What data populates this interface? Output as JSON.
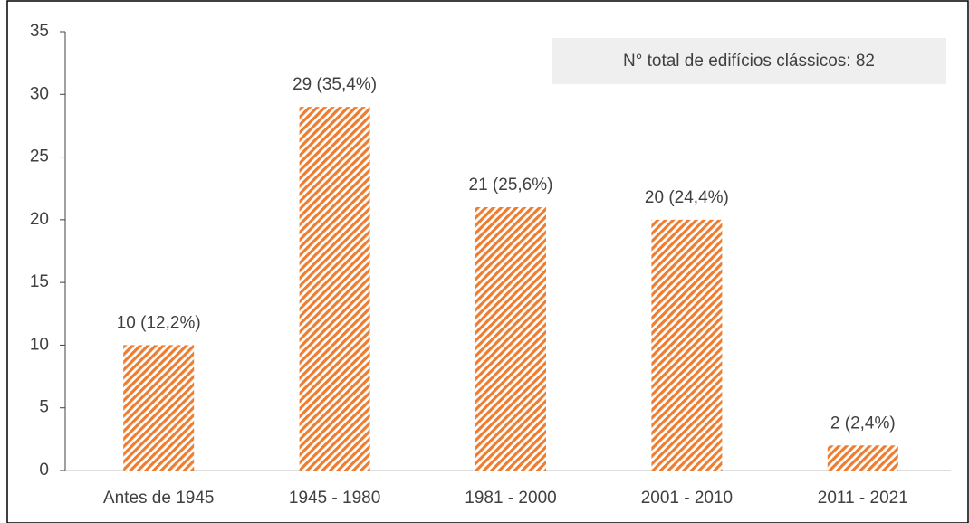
{
  "chart_data": {
    "type": "bar",
    "categories": [
      "Antes de 1945",
      "1945 - 1980",
      "1981 - 2000",
      "2001 - 2010",
      "2011 - 2021"
    ],
    "values": [
      10,
      29,
      21,
      20,
      2
    ],
    "value_labels": [
      "10 (12,2%)",
      "29 (35,4%)",
      "21 (25,6%)",
      "20 (24,4%)",
      "2 (2,4%)"
    ],
    "color": "#ed7d31",
    "ylim": [
      0,
      35
    ],
    "yticks": [
      0,
      5,
      10,
      15,
      20,
      25,
      30,
      35
    ],
    "annotation": "N° total de edifícios clássicos: 82"
  }
}
